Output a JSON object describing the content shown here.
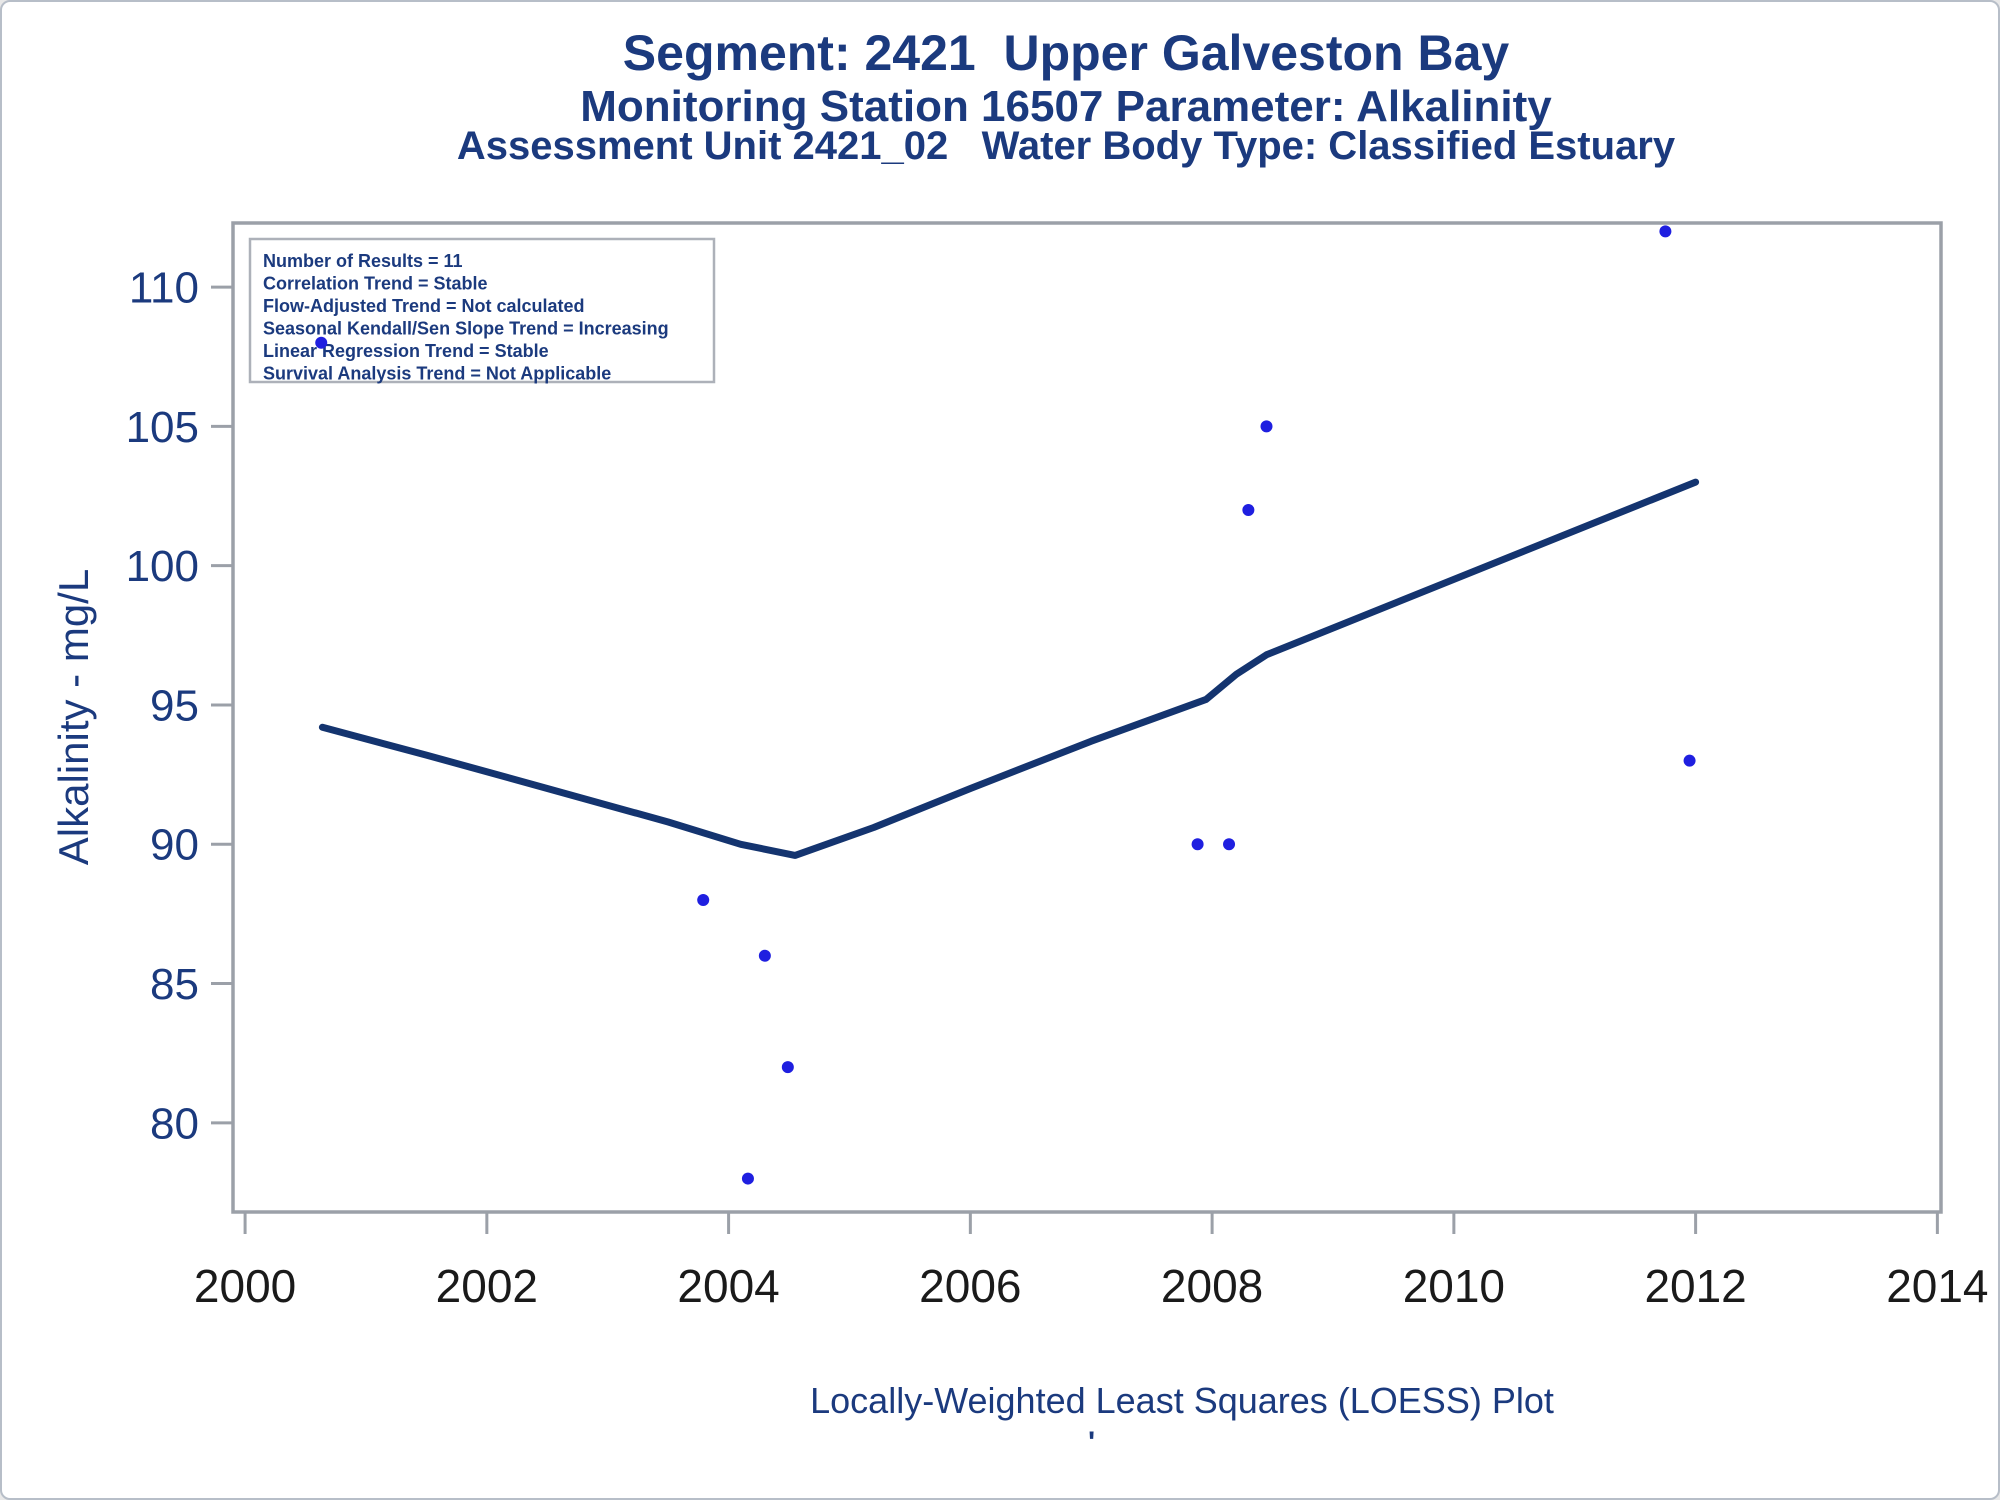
{
  "titles": {
    "line1": "Segment: 2421  Upper Galveston Bay",
    "line2": "Monitoring Station 16507 Parameter: Alkalinity",
    "line3": "Assessment Unit 2421_02   Water Body Type: Classified Estuary"
  },
  "stats_box": {
    "lines": [
      "Number of Results = 11",
      "Correlation Trend = Stable",
      "Flow-Adjusted Trend = Not calculated",
      "Seasonal Kendall/Sen Slope Trend = Increasing",
      "Linear Regression Trend = Stable",
      "Survival Analysis Trend = Not Applicable"
    ]
  },
  "chart_data": {
    "type": "scatter",
    "title": "Segment: 2421  Upper Galveston Bay",
    "xlabel": "Locally-Weighted Least Squares (LOESS) Plot",
    "ylabel": "Alkalinity - mg/L",
    "xlim": [
      1999.9,
      2014.03
    ],
    "ylim": [
      76.8,
      112.3
    ],
    "x_ticks": [
      2000,
      2002,
      2004,
      2006,
      2008,
      2010,
      2012,
      2014
    ],
    "y_ticks": [
      80,
      85,
      90,
      95,
      100,
      105,
      110
    ],
    "grid": false,
    "legend": "none",
    "points": [
      {
        "year": 2000.63,
        "value": 108
      },
      {
        "year": 2003.79,
        "value": 88
      },
      {
        "year": 2004.16,
        "value": 78
      },
      {
        "year": 2004.3,
        "value": 86
      },
      {
        "year": 2004.49,
        "value": 82
      },
      {
        "year": 2007.88,
        "value": 90
      },
      {
        "year": 2008.14,
        "value": 90
      },
      {
        "year": 2008.3,
        "value": 102
      },
      {
        "year": 2008.45,
        "value": 105
      },
      {
        "year": 2011.75,
        "value": 112
      },
      {
        "year": 2011.95,
        "value": 93
      }
    ],
    "loess_line": [
      [
        2000.64,
        94.2
      ],
      [
        2001.5,
        93.2
      ],
      [
        2002.5,
        92.0
      ],
      [
        2003.5,
        90.8
      ],
      [
        2004.1,
        90.0
      ],
      [
        2004.55,
        89.6
      ],
      [
        2005.2,
        90.6
      ],
      [
        2006.0,
        92.0
      ],
      [
        2007.0,
        93.7
      ],
      [
        2007.95,
        95.2
      ],
      [
        2008.2,
        96.1
      ],
      [
        2008.45,
        96.8
      ],
      [
        2012.0,
        103.0
      ]
    ],
    "footnote_mark": "'"
  },
  "colors": {
    "title_navy": "#1b3a7e",
    "loess_line": "#14346f",
    "data_point": "#1f1fe0",
    "axis_gray": "#9ba0a8",
    "x_tick_label": "#1a1a1a",
    "stats_border": "#adb1b9"
  }
}
